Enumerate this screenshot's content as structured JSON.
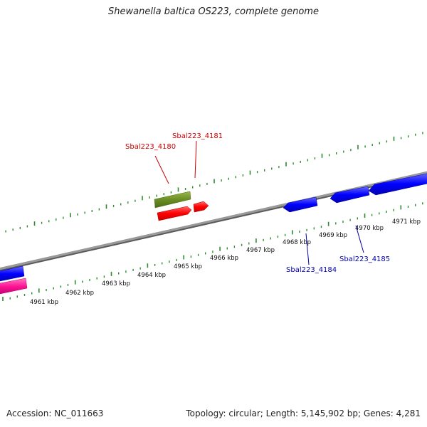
{
  "title": "Shewanella baltica OS223, complete genome",
  "footer": {
    "accession": "Accession: NC_011663",
    "topology": "Topology: circular; Length: 5,145,902 bp; Genes: 4,281"
  },
  "scale": {
    "unit": "kbp",
    "labels": [
      "4961 kbp",
      "4962 kbp",
      "4963 kbp",
      "4964 kbp",
      "4965 kbp",
      "4966 kbp",
      "4967 kbp",
      "4968 kbp",
      "4969 kbp",
      "4970 kbp",
      "4971 kbp"
    ]
  },
  "genes": [
    {
      "id": "Sbal223_4180",
      "label": "Sbal223_4180",
      "strand": "forward",
      "color": "#cc0000"
    },
    {
      "id": "Sbal223_4181",
      "label": "Sbal223_4181",
      "strand": "forward",
      "color": "#cc0000"
    },
    {
      "id": "Sbal223_4184",
      "label": "Sbal223_4184",
      "strand": "reverse",
      "color": "#0000aa"
    },
    {
      "id": "Sbal223_4185",
      "label": "Sbal223_4185",
      "strand": "reverse",
      "color": "#0000aa"
    }
  ],
  "colors": {
    "backbone": "#8a8a8a",
    "tick": "#2e8b2e",
    "forward_gene": "#ff1a1a",
    "reverse_gene": "#1a1aff",
    "rna_feature": "#6b8e23",
    "pink_feature": "#ff1493"
  }
}
